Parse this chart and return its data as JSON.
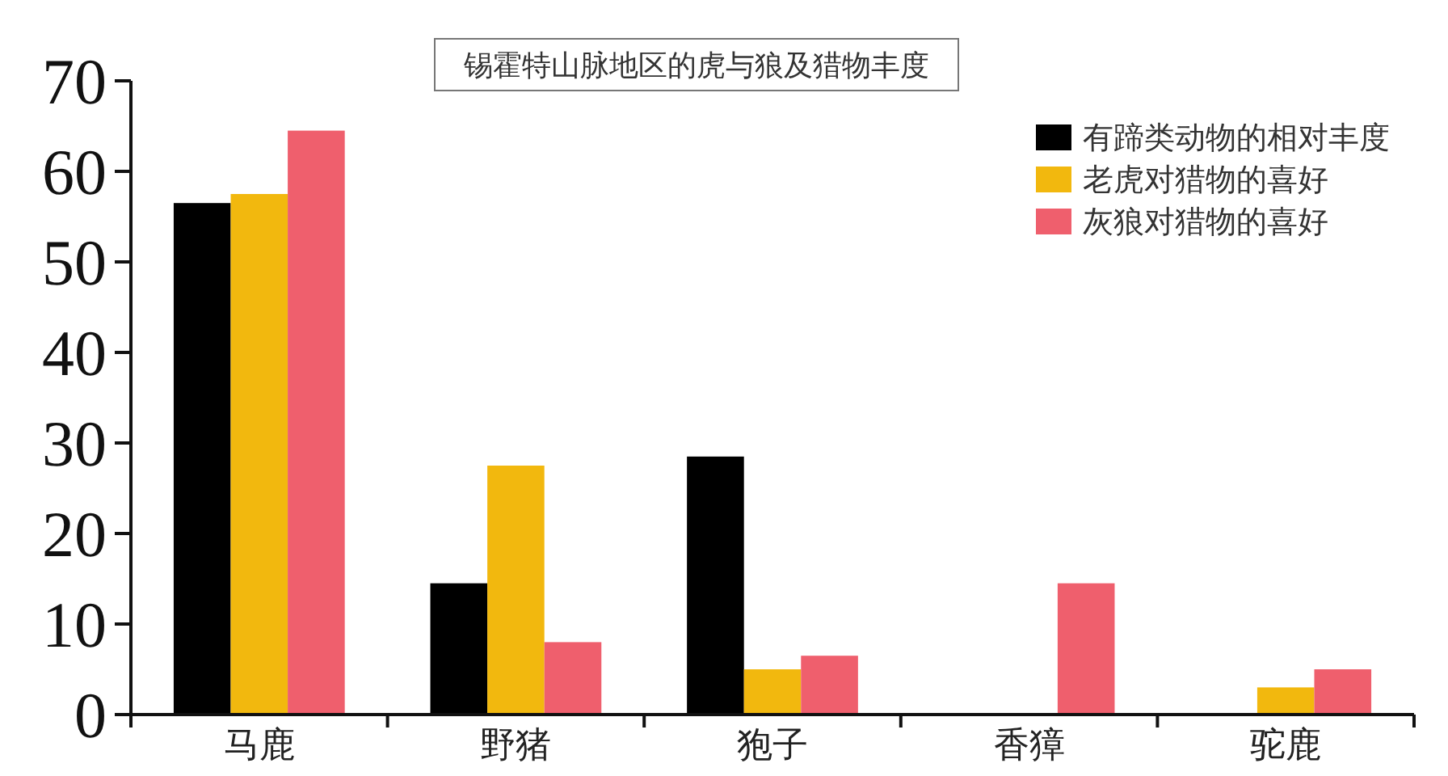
{
  "chart_data": {
    "type": "bar",
    "title": "锡霍特山脉地区的虎与狼及猎物丰度",
    "categories": [
      "马鹿",
      "野猪",
      "狍子",
      "香獐",
      "驼鹿"
    ],
    "series": [
      {
        "name": "有蹄类动物的相对丰度",
        "color": "#000000",
        "values": [
          56.5,
          14.5,
          28.5,
          null,
          null
        ]
      },
      {
        "name": "老虎对猎物的喜好",
        "color": "#f2b80e",
        "values": [
          57.5,
          27.5,
          5,
          null,
          3
        ]
      },
      {
        "name": "灰狼对猎物的喜好",
        "color": "#ef5f6d",
        "values": [
          64.5,
          8,
          6.5,
          14.5,
          5
        ]
      }
    ],
    "ylim": [
      0,
      70
    ],
    "yticks": [
      0,
      10,
      20,
      30,
      40,
      50,
      60,
      70
    ],
    "legend": "top right"
  }
}
